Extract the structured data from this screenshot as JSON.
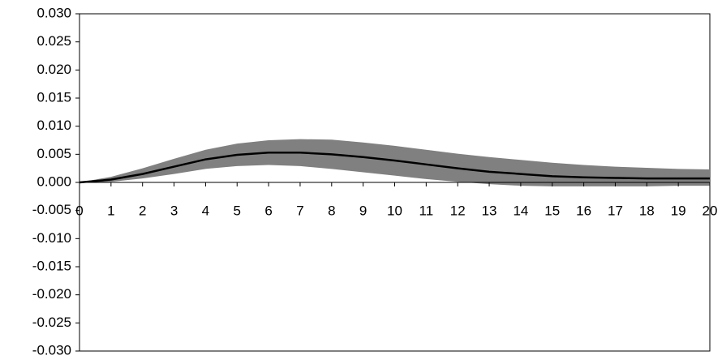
{
  "chart_data": {
    "type": "line",
    "x": [
      0,
      1,
      2,
      3,
      4,
      5,
      6,
      7,
      8,
      9,
      10,
      11,
      12,
      13,
      14,
      15,
      16,
      17,
      18,
      19,
      20
    ],
    "series": [
      {
        "color": "#000000",
        "values": [
          0,
          0.0005,
          0.0015,
          0.0028,
          0.0041,
          0.0049,
          0.0053,
          0.0053,
          0.005,
          0.0045,
          0.0039,
          0.0032,
          0.0025,
          0.0019,
          0.0015,
          0.0011,
          0.0009,
          0.0008,
          0.0007,
          0.0007,
          0.0007
        ]
      }
    ],
    "band": {
      "color": "#808080",
      "upper": [
        0,
        0.001,
        0.0025,
        0.0042,
        0.0058,
        0.0069,
        0.0075,
        0.0077,
        0.0076,
        0.0071,
        0.0065,
        0.0058,
        0.0051,
        0.0045,
        0.004,
        0.0035,
        0.0031,
        0.0028,
        0.0026,
        0.0024,
        0.0023
      ],
      "lower": [
        0,
        0.0001,
        0.0007,
        0.0015,
        0.0024,
        0.0029,
        0.0031,
        0.0029,
        0.0024,
        0.0018,
        0.0012,
        0.0006,
        0.0001,
        -0.0003,
        -0.0006,
        -0.0007,
        -0.0007,
        -0.0007,
        -0.0007,
        -0.0006,
        -0.0006
      ]
    },
    "xlim": [
      0,
      20
    ],
    "xticks": [
      0,
      1,
      2,
      3,
      4,
      5,
      6,
      7,
      8,
      9,
      10,
      11,
      12,
      13,
      14,
      15,
      16,
      17,
      18,
      19,
      20
    ],
    "ylim": [
      -0.03,
      0.03
    ],
    "yticks": [
      {
        "value": 0.03,
        "label": "0.030"
      },
      {
        "value": 0.025,
        "label": "0.025"
      },
      {
        "value": 0.02,
        "label": "0.020"
      },
      {
        "value": 0.015,
        "label": "0.015"
      },
      {
        "value": 0.01,
        "label": "0.010"
      },
      {
        "value": 0.005,
        "label": "0.005"
      },
      {
        "value": 0,
        "label": "0.000"
      },
      {
        "value": -0.005,
        "label": "-0.005"
      },
      {
        "value": -0.01,
        "label": "-0.010"
      },
      {
        "value": -0.015,
        "label": "-0.015"
      },
      {
        "value": -0.02,
        "label": "-0.020"
      },
      {
        "value": -0.025,
        "label": "-0.025"
      },
      {
        "value": -0.03,
        "label": "-0.030"
      }
    ]
  }
}
